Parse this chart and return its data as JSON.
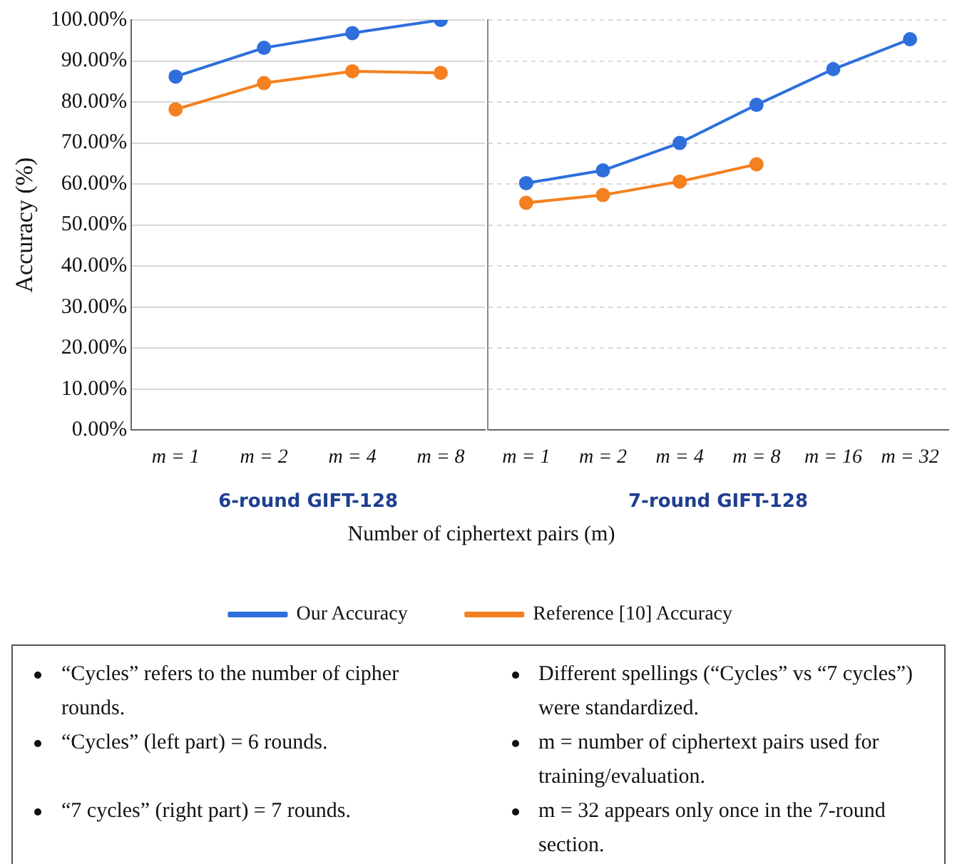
{
  "chart_data": [
    {
      "type": "line",
      "xlabel": "6-round GIFT-128",
      "ylabel": "Accuracy (%)",
      "categories": [
        "m = 1",
        "m = 2",
        "m = 4",
        "m = 8"
      ],
      "series": [
        {
          "name": "Our Accuracy",
          "color": "#2e6fdc",
          "values": [
            86.2,
            93.2,
            96.8,
            100.0
          ]
        },
        {
          "name": "Reference [10] Accuracy",
          "color": "#f4801f",
          "values": [
            78.2,
            84.6,
            87.5,
            87.1
          ]
        }
      ],
      "ylim": [
        0,
        100
      ],
      "yticks": [
        {
          "value": 0,
          "label": "0.00%"
        },
        {
          "value": 10,
          "label": "10.00%"
        },
        {
          "value": 20,
          "label": "20.00%"
        },
        {
          "value": 30,
          "label": "30.00%"
        },
        {
          "value": 40,
          "label": "40.00%"
        },
        {
          "value": 50,
          "label": "50.00%"
        },
        {
          "value": 60,
          "label": "60.00%"
        },
        {
          "value": 70,
          "label": "70.00%"
        },
        {
          "value": 80,
          "label": "80.00%"
        },
        {
          "value": 90,
          "label": "90.00%"
        },
        {
          "value": 100,
          "label": "100.00%"
        }
      ],
      "grid": "y",
      "legend": "bottom",
      "marker": "circle",
      "line_style": "solid"
    },
    {
      "type": "line",
      "xlabel": "7-round GIFT-128",
      "categories": [
        "m = 1",
        "m = 2",
        "m = 4",
        "m = 8",
        "m = 16",
        "m = 32"
      ],
      "series": [
        {
          "color": "#2e6fdc",
          "values": [
            60.2,
            63.3,
            70.0,
            79.3,
            88.0,
            95.3
          ]
        },
        {
          "color": "#f4801f",
          "values": [
            55.4,
            57.3,
            60.6,
            64.8,
            null,
            null
          ]
        }
      ],
      "ylim": [
        0,
        100
      ],
      "yticks": [
        {
          "value": 0,
          "label": null
        },
        {
          "value": 10,
          "label": null
        },
        {
          "value": 20,
          "label": null
        },
        {
          "value": 30,
          "label": null
        },
        {
          "value": 40,
          "label": null
        },
        {
          "value": 50,
          "label": null
        },
        {
          "value": 60,
          "label": null
        },
        {
          "value": 70,
          "label": null
        },
        {
          "value": 80,
          "label": null
        },
        {
          "value": 90,
          "label": null
        },
        {
          "value": 100,
          "label": null
        }
      ],
      "tick_labels": "x",
      "grid": "y",
      "marker": "circle",
      "line_style": "solid"
    },
    {
      "type": "other",
      "annotations": [
        "Number of ciphertext pairs (m)",
        "“Cycles” refers to the number of cipher rounds.",
        "“Cycles” (left part) = 6 rounds.",
        "“7 cycles” (right part) = 7 rounds.",
        "Different spellings (“Cycles” vs “7 cycles”) were standardized.",
        "m = number of ciphertext pairs used for training/evaluation.",
        "m = 32 appears only once in the 7-round section."
      ]
    }
  ]
}
